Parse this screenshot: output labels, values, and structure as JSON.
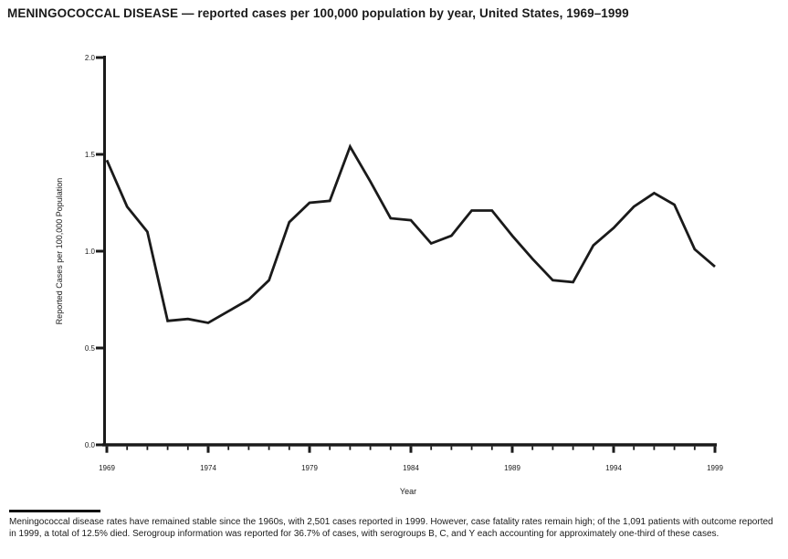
{
  "page": {
    "title": "MENINGOCOCCAL DISEASE — reported cases per 100,000 population by year, United States, 1969–1999"
  },
  "chart_data": {
    "type": "line",
    "title": "MENINGOCOCCAL DISEASE — reported cases per 100,000 population by year, United States, 1969–1999",
    "xlabel": "Year",
    "ylabel": "Reported Cases per 100,000 Population",
    "x": [
      1969,
      1970,
      1971,
      1972,
      1973,
      1974,
      1975,
      1976,
      1977,
      1978,
      1979,
      1980,
      1981,
      1982,
      1983,
      1984,
      1985,
      1986,
      1987,
      1988,
      1989,
      1990,
      1991,
      1992,
      1993,
      1994,
      1995,
      1996,
      1997,
      1998,
      1999
    ],
    "values": [
      1.47,
      1.23,
      1.1,
      0.64,
      0.65,
      0.63,
      0.69,
      0.75,
      0.85,
      1.15,
      1.25,
      1.26,
      1.54,
      1.36,
      1.17,
      1.16,
      1.04,
      1.08,
      1.21,
      1.21,
      1.08,
      0.96,
      0.85,
      0.84,
      1.03,
      1.12,
      1.23,
      1.3,
      1.24,
      1.01,
      0.92
    ],
    "ylim": [
      0.0,
      2.0
    ],
    "yticks": [
      0.0,
      0.5,
      1.0,
      1.5,
      2.0
    ],
    "ytick_labels": [
      "0.0",
      "0.5",
      "1.0",
      "1.5",
      "2.0"
    ],
    "xtick_years": [
      1969,
      1974,
      1979,
      1984,
      1989,
      1994,
      1999
    ],
    "grid": false,
    "legend_position": "none",
    "line_color": "#1a1a1a",
    "axis_color": "#1a1a1a"
  },
  "footnote": {
    "text": "Meningococcal disease rates have remained stable since the 1960s, with 2,501 cases reported in 1999. However, case fatality rates remain high; of the 1,091 patients with outcome reported in 1999, a total of 12.5% died. Serogroup information was reported for 36.7% of cases, with serogroups B, C, and Y each accounting for approximately one-third of these cases."
  }
}
